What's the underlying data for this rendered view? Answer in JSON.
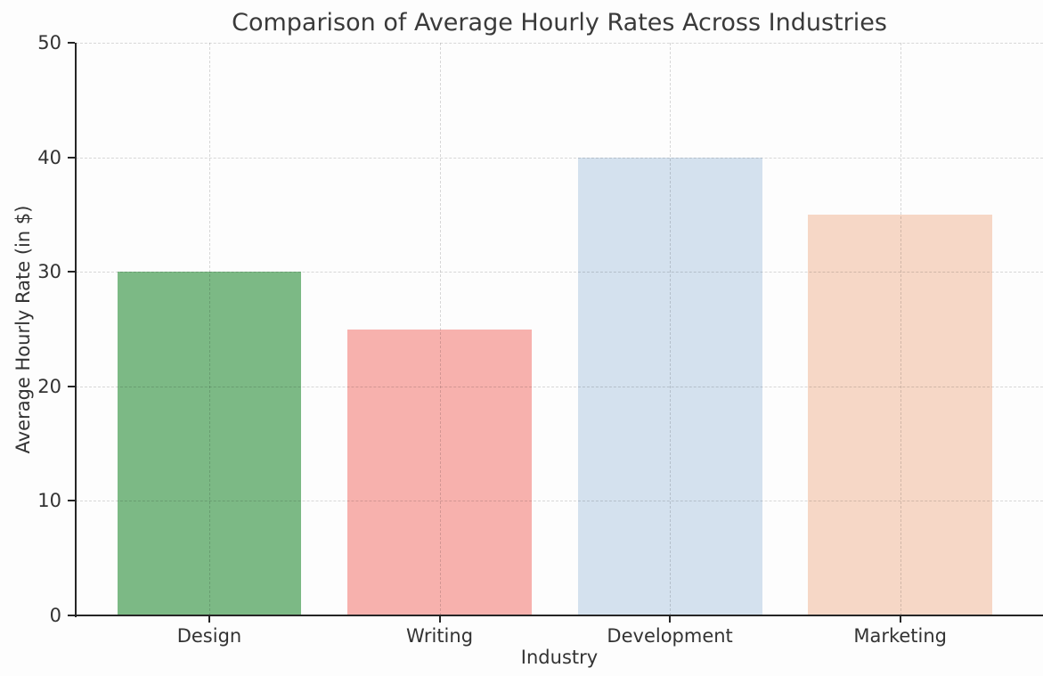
{
  "chart_data": {
    "type": "bar",
    "title": "Comparison of Average Hourly Rates Across Industries",
    "xlabel": "Industry",
    "ylabel": "Average Hourly Rate (in $)",
    "categories": [
      "Design",
      "Writing",
      "Development",
      "Marketing"
    ],
    "values": [
      30,
      25,
      40,
      35
    ],
    "bar_colors": [
      "#7cb985",
      "#f7b1ad",
      "#d4e1ee",
      "#f6d7c6"
    ],
    "ylim": [
      0,
      50
    ],
    "yticks": [
      0,
      10,
      20,
      30,
      40,
      50
    ],
    "xlim": [
      -0.58,
      3.62
    ],
    "bar_width": 0.8,
    "grid": "dashed",
    "grid_color": "#d9d9d9",
    "axis_color": "#262626",
    "text_color": "#333333",
    "legend": "none"
  }
}
